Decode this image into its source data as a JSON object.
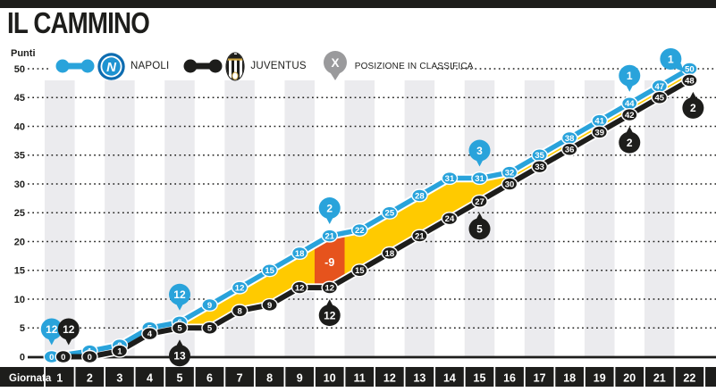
{
  "page": {
    "title": "IL CAMMINO"
  },
  "legend": {
    "napoli_label": "NAPOLI",
    "napoli_crest_letter": "N",
    "juventus_label": "JUVENTUS",
    "position_label": "POSIZIONE IN CLASSIFICA",
    "position_symbol": "X"
  },
  "chart_data": {
    "type": "line",
    "title": "IL CAMMINO",
    "xlabel": "Giornata",
    "ylabel": "Punti",
    "ylim": [
      0,
      50
    ],
    "yticks": [
      0,
      5,
      10,
      15,
      20,
      25,
      30,
      35,
      40,
      45,
      50
    ],
    "grid": "dotted-horizontal",
    "legend_position": "top",
    "categories": [
      "1",
      "2",
      "3",
      "4",
      "5",
      "6",
      "7",
      "8",
      "9",
      "10",
      "11",
      "12",
      "13",
      "14",
      "15",
      "16",
      "17",
      "18",
      "19",
      "20",
      "21",
      "22"
    ],
    "series": [
      {
        "name": "NAPOLI",
        "color": "#29a3db",
        "values": [
          0,
          1,
          2,
          5,
          6,
          9,
          12,
          15,
          18,
          21,
          22,
          25,
          28,
          31,
          31,
          32,
          35,
          38,
          41,
          44,
          47,
          50
        ]
      },
      {
        "name": "JUVENTUS",
        "color": "#1d1d1b",
        "values": [
          0,
          0,
          1,
          4,
          5,
          5,
          8,
          9,
          12,
          12,
          15,
          18,
          21,
          24,
          27,
          30,
          33,
          36,
          39,
          42,
          45,
          48
        ]
      }
    ],
    "area_between": {
      "fill": "#ffca00"
    },
    "gap_highlight": {
      "giornata": 10,
      "label": "-9",
      "fill": "#e6531d"
    },
    "position_pins": [
      {
        "team": "napoli",
        "giornata": 1,
        "position": "12",
        "side": "above"
      },
      {
        "team": "juventus",
        "giornata": 1,
        "position": "12",
        "side": "above"
      },
      {
        "team": "napoli",
        "giornata": 5,
        "position": "12",
        "side": "above"
      },
      {
        "team": "juventus",
        "giornata": 5,
        "position": "13",
        "side": "below"
      },
      {
        "team": "napoli",
        "giornata": 10,
        "position": "2",
        "side": "above"
      },
      {
        "team": "juventus",
        "giornata": 10,
        "position": "12",
        "side": "below"
      },
      {
        "team": "napoli",
        "giornata": 15,
        "position": "3",
        "side": "above"
      },
      {
        "team": "juventus",
        "giornata": 15,
        "position": "5",
        "side": "below"
      },
      {
        "team": "napoli",
        "giornata": 20,
        "position": "1",
        "side": "above"
      },
      {
        "team": "juventus",
        "giornata": 20,
        "position": "2",
        "side": "below"
      },
      {
        "team": "napoli",
        "giornata": 22,
        "position": "1",
        "side": "above-left"
      },
      {
        "team": "juventus",
        "giornata": 22,
        "position": "2",
        "side": "below"
      }
    ],
    "colors": {
      "stripe": "#ebebee",
      "axis_bar": "#1d1d1b",
      "grid": "#1d1d1b",
      "position_pin_neutral": "#9a9a9c"
    }
  }
}
